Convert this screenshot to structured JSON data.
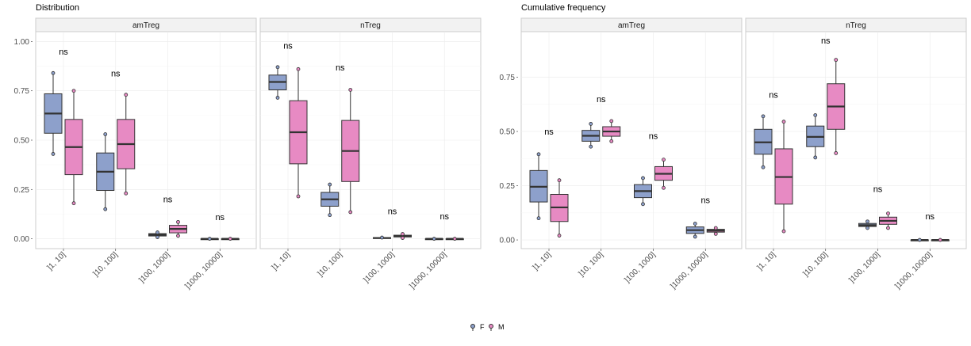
{
  "legend": {
    "items": [
      {
        "label": "F",
        "color": "#8DA0CB"
      },
      {
        "label": "M",
        "color": "#E78AC3"
      }
    ],
    "placement": "bottom"
  },
  "annotation_label": "ns",
  "chart_data": [
    {
      "type": "boxplot",
      "title": "Distribution",
      "categories": [
        "]1, 10]",
        "]10, 100]",
        "]100, 1000]",
        "]1000, 10000]"
      ],
      "ylim": [
        -0.05,
        1.05
      ],
      "y_ticks": [
        "0.00",
        "0.25",
        "0.50",
        "0.75",
        "1.00"
      ],
      "y_tick_values": [
        0,
        0.25,
        0.5,
        0.75,
        1.0
      ],
      "grid": true,
      "panels": [
        {
          "name": "amTreg",
          "annotations": [
            {
              "category": 0,
              "text": "ns",
              "y": 0.95
            },
            {
              "category": 1,
              "text": "ns",
              "y": 0.84
            },
            {
              "category": 2,
              "text": "ns",
              "y": 0.2
            },
            {
              "category": 3,
              "text": "ns",
              "y": 0.11
            }
          ],
          "groups": {
            "F": [
              {
                "min": 0.43,
                "q1": 0.535,
                "median": 0.635,
                "q3": 0.735,
                "max": 0.84,
                "points": [
                  0.84,
                  0.43
                ]
              },
              {
                "min": 0.15,
                "q1": 0.245,
                "median": 0.34,
                "q3": 0.435,
                "max": 0.53,
                "points": [
                  0.53,
                  0.15
                ]
              },
              {
                "min": 0.008,
                "q1": 0.014,
                "median": 0.02,
                "q3": 0.026,
                "max": 0.032,
                "points": [
                  0.032,
                  0.008
                ]
              },
              {
                "min": 0.0,
                "q1": 0.0,
                "median": 0.0,
                "q3": 0.0,
                "max": 0.0,
                "points": [
                  0.0
                ]
              }
            ],
            "M": [
              {
                "min": 0.18,
                "q1": 0.325,
                "median": 0.465,
                "q3": 0.605,
                "max": 0.75,
                "points": [
                  0.75,
                  0.18
                ]
              },
              {
                "min": 0.23,
                "q1": 0.355,
                "median": 0.48,
                "q3": 0.605,
                "max": 0.73,
                "points": [
                  0.73,
                  0.23
                ]
              },
              {
                "min": 0.015,
                "q1": 0.03,
                "median": 0.05,
                "q3": 0.068,
                "max": 0.085,
                "points": [
                  0.085,
                  0.015
                ]
              },
              {
                "min": 0.0,
                "q1": 0.0,
                "median": 0.0,
                "q3": 0.0,
                "max": 0.0,
                "points": [
                  0.0
                ]
              }
            ]
          }
        },
        {
          "name": "nTreg",
          "annotations": [
            {
              "category": 0,
              "text": "ns",
              "y": 0.98
            },
            {
              "category": 1,
              "text": "ns",
              "y": 0.87
            },
            {
              "category": 2,
              "text": "ns",
              "y": 0.14
            },
            {
              "category": 3,
              "text": "ns",
              "y": 0.115
            }
          ],
          "groups": {
            "F": [
              {
                "min": 0.715,
                "q1": 0.755,
                "median": 0.795,
                "q3": 0.83,
                "max": 0.87,
                "points": [
                  0.87,
                  0.715
                ]
              },
              {
                "min": 0.12,
                "q1": 0.165,
                "median": 0.2,
                "q3": 0.235,
                "max": 0.275,
                "points": [
                  0.275,
                  0.12
                ]
              },
              {
                "min": 0.0,
                "q1": 0.002,
                "median": 0.004,
                "q3": 0.006,
                "max": 0.008,
                "points": [
                  0.006
                ]
              },
              {
                "min": 0.0,
                "q1": 0.0,
                "median": 0.0,
                "q3": 0.0,
                "max": 0.0,
                "points": [
                  0.0
                ]
              }
            ],
            "M": [
              {
                "min": 0.215,
                "q1": 0.38,
                "median": 0.54,
                "q3": 0.7,
                "max": 0.86,
                "points": [
                  0.86,
                  0.215
                ]
              },
              {
                "min": 0.135,
                "q1": 0.29,
                "median": 0.445,
                "q3": 0.6,
                "max": 0.755,
                "points": [
                  0.755,
                  0.135
                ]
              },
              {
                "min": 0.004,
                "q1": 0.009,
                "median": 0.013,
                "q3": 0.018,
                "max": 0.024,
                "points": [
                  0.024,
                  0.004
                ]
              },
              {
                "min": 0.0,
                "q1": 0.0,
                "median": 0.0,
                "q3": 0.0,
                "max": 0.0,
                "points": [
                  0.0
                ]
              }
            ]
          }
        }
      ]
    },
    {
      "type": "boxplot",
      "title": "Cumulative frequency",
      "categories": [
        "]1, 10]",
        "]10, 100]",
        "]100, 1000]",
        "]1000, 10000]"
      ],
      "ylim": [
        -0.04,
        0.96
      ],
      "y_ticks": [
        "0.00",
        "0.25",
        "0.50",
        "0.75"
      ],
      "y_tick_values": [
        0,
        0.25,
        0.5,
        0.75
      ],
      "grid": true,
      "panels": [
        {
          "name": "amTreg",
          "annotations": [
            {
              "category": 0,
              "text": "ns",
              "y": 0.5
            },
            {
              "category": 1,
              "text": "ns",
              "y": 0.65
            },
            {
              "category": 2,
              "text": "ns",
              "y": 0.48
            },
            {
              "category": 3,
              "text": "ns",
              "y": 0.185
            }
          ],
          "groups": {
            "F": [
              {
                "min": 0.1,
                "q1": 0.175,
                "median": 0.245,
                "q3": 0.32,
                "max": 0.395,
                "points": [
                  0.395,
                  0.1
                ]
              },
              {
                "min": 0.43,
                "q1": 0.455,
                "median": 0.48,
                "q3": 0.505,
                "max": 0.535,
                "points": [
                  0.535,
                  0.43
                ]
              },
              {
                "min": 0.165,
                "q1": 0.195,
                "median": 0.225,
                "q3": 0.255,
                "max": 0.285,
                "points": [
                  0.285,
                  0.165
                ]
              },
              {
                "min": 0.015,
                "q1": 0.03,
                "median": 0.045,
                "q3": 0.06,
                "max": 0.075,
                "points": [
                  0.075,
                  0.015
                ]
              }
            ],
            "M": [
              {
                "min": 0.02,
                "q1": 0.085,
                "median": 0.15,
                "q3": 0.21,
                "max": 0.275,
                "points": [
                  0.275,
                  0.02
                ]
              },
              {
                "min": 0.455,
                "q1": 0.478,
                "median": 0.5,
                "q3": 0.522,
                "max": 0.548,
                "points": [
                  0.548,
                  0.455
                ]
              },
              {
                "min": 0.24,
                "q1": 0.275,
                "median": 0.305,
                "q3": 0.338,
                "max": 0.37,
                "points": [
                  0.37,
                  0.24
                ]
              },
              {
                "min": 0.028,
                "q1": 0.036,
                "median": 0.043,
                "q3": 0.049,
                "max": 0.055,
                "points": [
                  0.055,
                  0.028
                ]
              }
            ]
          }
        },
        {
          "name": "nTreg",
          "annotations": [
            {
              "category": 0,
              "text": "ns",
              "y": 0.67
            },
            {
              "category": 1,
              "text": "ns",
              "y": 0.92
            },
            {
              "category": 2,
              "text": "ns",
              "y": 0.235
            },
            {
              "category": 3,
              "text": "ns",
              "y": 0.11
            }
          ],
          "groups": {
            "F": [
              {
                "min": 0.335,
                "q1": 0.395,
                "median": 0.45,
                "q3": 0.51,
                "max": 0.57,
                "points": [
                  0.57,
                  0.335
                ]
              },
              {
                "min": 0.38,
                "q1": 0.43,
                "median": 0.475,
                "q3": 0.525,
                "max": 0.575,
                "points": [
                  0.575,
                  0.38
                ]
              },
              {
                "min": 0.055,
                "q1": 0.062,
                "median": 0.068,
                "q3": 0.076,
                "max": 0.085,
                "points": [
                  0.085,
                  0.055
                ]
              },
              {
                "min": 0.0,
                "q1": 0.0,
                "median": 0.0,
                "q3": 0.0,
                "max": 0.0,
                "points": [
                  0.0
                ]
              }
            ],
            "M": [
              {
                "min": 0.04,
                "q1": 0.165,
                "median": 0.29,
                "q3": 0.42,
                "max": 0.545,
                "points": [
                  0.545,
                  0.04
                ]
              },
              {
                "min": 0.4,
                "q1": 0.51,
                "median": 0.615,
                "q3": 0.72,
                "max": 0.83,
                "points": [
                  0.83,
                  0.4
                ]
              },
              {
                "min": 0.055,
                "q1": 0.072,
                "median": 0.088,
                "q3": 0.105,
                "max": 0.122,
                "points": [
                  0.122,
                  0.055
                ]
              },
              {
                "min": 0.0,
                "q1": 0.0,
                "median": 0.0,
                "q3": 0.0,
                "max": 0.0,
                "points": [
                  0.0
                ]
              }
            ]
          }
        }
      ]
    }
  ]
}
